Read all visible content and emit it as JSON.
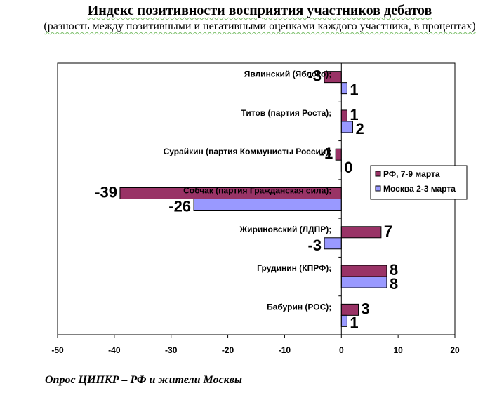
{
  "chart_data": {
    "type": "bar",
    "orientation": "horizontal",
    "title": "Индекс позитивности восприятия участников дебатов",
    "subtitle": "(разность между позитивными и негативными оценками каждого участника, в процентах)",
    "categories": [
      "Явлинский (Яблоко);",
      "Титов (партия Роста);",
      "Сурайкин (партия Коммунисты России);",
      "Собчак (партия Гражданская сила);",
      "Жириновский (ЛДПР);",
      "Грудинин (КПРФ);",
      "Бабурин (РОС);"
    ],
    "series": [
      {
        "name": "РФ, 7-9 марта",
        "color": "#993366",
        "values": [
          -3,
          1,
          -1,
          -39,
          7,
          8,
          3
        ]
      },
      {
        "name": "Москва 2-3 марта",
        "color": "#9999ff",
        "values": [
          1,
          2,
          0,
          -26,
          -3,
          8,
          1
        ]
      }
    ],
    "xlim": [
      -50,
      20
    ],
    "xticks": [
      -50,
      -40,
      -30,
      -20,
      -10,
      0,
      10,
      20
    ],
    "grid": false,
    "legend_position": "right"
  },
  "footnote": "Опрос ЦИПКР – РФ и жители Москвы"
}
